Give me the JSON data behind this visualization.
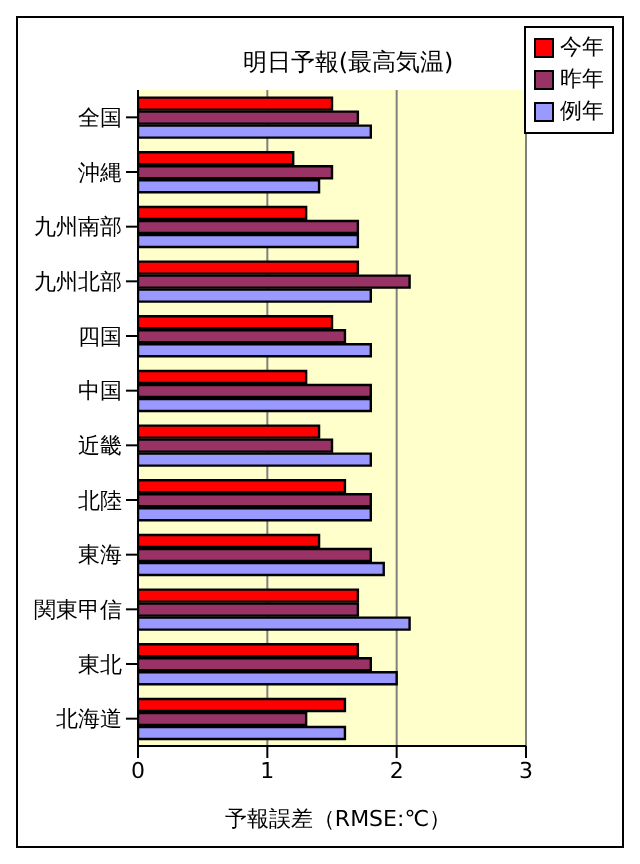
{
  "chart_data": {
    "type": "bar",
    "orientation": "horizontal",
    "title": "明日予報(最高気温)",
    "xlabel": "予報誤差（RMSE:℃）",
    "categories": [
      "全国",
      "沖縄",
      "九州南部",
      "九州北部",
      "四国",
      "中国",
      "近畿",
      "北陸",
      "東海",
      "関東甲信",
      "東北",
      "北海道"
    ],
    "series": [
      {
        "name": "今年",
        "color": "#ff0000",
        "values": [
          1.5,
          1.2,
          1.3,
          1.7,
          1.5,
          1.3,
          1.4,
          1.6,
          1.4,
          1.7,
          1.7,
          1.6
        ]
      },
      {
        "name": "昨年",
        "color": "#993366",
        "values": [
          1.7,
          1.5,
          1.7,
          2.1,
          1.6,
          1.8,
          1.5,
          1.8,
          1.8,
          1.7,
          1.8,
          1.3
        ]
      },
      {
        "name": "例年",
        "color": "#9999ff",
        "values": [
          1.8,
          1.4,
          1.7,
          1.8,
          1.8,
          1.8,
          1.8,
          1.8,
          1.9,
          2.1,
          2.0,
          1.6
        ]
      }
    ],
    "xlim": [
      0,
      3
    ],
    "xticks": [
      0,
      1,
      2,
      3
    ],
    "grid": "x",
    "legend": "top right"
  }
}
